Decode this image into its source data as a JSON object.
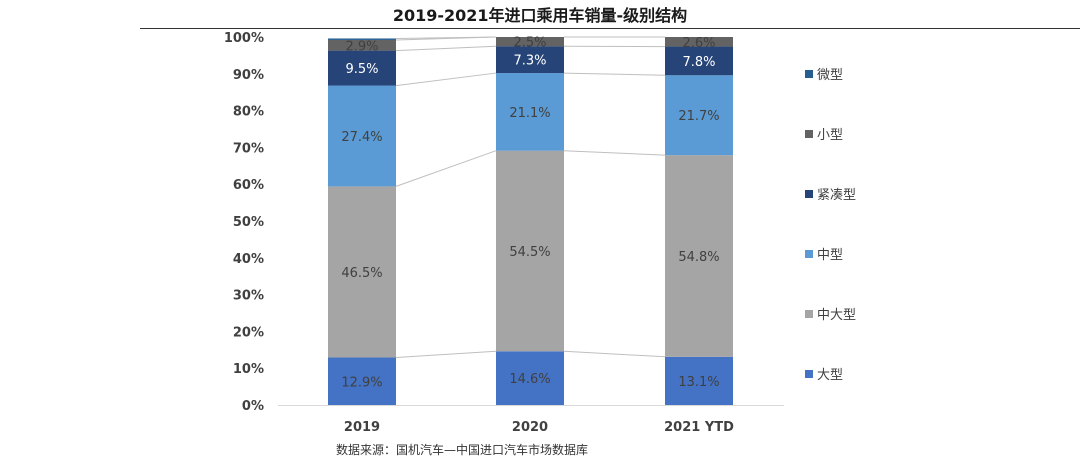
{
  "chart_data": {
    "type": "stacked-bar-100",
    "title": "2019-2021年进口乘用车销量-级别结构",
    "categories": [
      "2019",
      "2020",
      "2021 YTD"
    ],
    "series": [
      {
        "name": "大型",
        "color": "#4472c4",
        "values": [
          12.9,
          14.6,
          13.1
        ],
        "labels": [
          "12.9%",
          "14.6%",
          "13.1%"
        ]
      },
      {
        "name": "中大型",
        "color": "#a5a5a5",
        "values": [
          46.5,
          54.5,
          54.8
        ],
        "labels": [
          "46.5%",
          "54.5%",
          "54.8%"
        ]
      },
      {
        "name": "中型",
        "color": "#5b9bd5",
        "values": [
          27.4,
          21.1,
          21.7
        ],
        "labels": [
          "27.4%",
          "21.1%",
          "21.7%"
        ]
      },
      {
        "name": "紧凑型",
        "color": "#264478",
        "values": [
          9.5,
          7.3,
          7.8
        ],
        "labels": [
          "9.5%",
          "7.3%",
          "7.8%"
        ]
      },
      {
        "name": "小型",
        "color": "#636363",
        "values": [
          2.9,
          2.5,
          2.6
        ],
        "labels": [
          "2.9%",
          "2.5%",
          "2.6%"
        ]
      },
      {
        "name": "微型",
        "color": "#255e91",
        "values": [
          0.4,
          0.0,
          0.0
        ],
        "labels": [
          "",
          "",
          ""
        ]
      }
    ],
    "y_ticks": [
      "0%",
      "10%",
      "20%",
      "30%",
      "40%",
      "50%",
      "60%",
      "70%",
      "80%",
      "90%",
      "100%"
    ],
    "ylim": [
      0,
      100
    ],
    "legend_position": "right",
    "legend_order": [
      "微型",
      "小型",
      "紧凑型",
      "中型",
      "中大型",
      "大型"
    ]
  },
  "source_note": "数据来源：国机汽车—中国进口汽车市场数据库"
}
